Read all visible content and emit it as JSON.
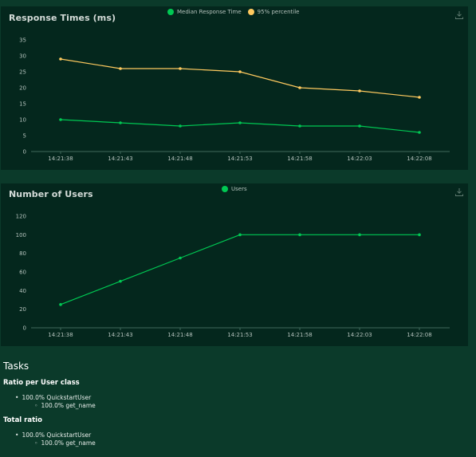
{
  "response_chart": {
    "title": "Response Times (ms)",
    "legend": [
      {
        "name": "Median Response Time",
        "color": "#00c853"
      },
      {
        "name": "95% percentile",
        "color": "#ffca5f"
      }
    ],
    "download_icon": "download-icon"
  },
  "users_chart": {
    "title": "Number of Users",
    "legend": [
      {
        "name": "Users",
        "color": "#00c853"
      }
    ],
    "download_icon": "download-icon"
  },
  "chart_data": [
    {
      "type": "line",
      "title": "Response Times (ms)",
      "x": [
        "14:21:38",
        "14:21:43",
        "14:21:48",
        "14:21:53",
        "14:21:58",
        "14:22:03",
        "14:22:08"
      ],
      "yticks": [
        0,
        5,
        10,
        15,
        20,
        25,
        30,
        35
      ],
      "ylim": [
        0,
        35
      ],
      "grid": false,
      "legend_position": "top",
      "series": [
        {
          "name": "Median Response Time",
          "color": "#00c853",
          "values": [
            10,
            9,
            8,
            9,
            8,
            8,
            6
          ]
        },
        {
          "name": "95% percentile",
          "color": "#ffca5f",
          "values": [
            29,
            26,
            26,
            25,
            20,
            19,
            17
          ]
        }
      ]
    },
    {
      "type": "line",
      "title": "Number of Users",
      "x": [
        "14:21:38",
        "14:21:43",
        "14:21:48",
        "14:21:53",
        "14:21:58",
        "14:22:03",
        "14:22:08"
      ],
      "yticks": [
        0,
        20,
        40,
        60,
        80,
        100,
        120
      ],
      "ylim": [
        0,
        120
      ],
      "grid": false,
      "legend_position": "top",
      "series": [
        {
          "name": "Users",
          "color": "#00c853",
          "values": [
            25,
            50,
            75,
            100,
            100,
            100,
            100
          ]
        }
      ]
    }
  ],
  "tasks": {
    "heading": "Tasks",
    "ratio_heading": "Ratio per User class",
    "ratio_items": [
      {
        "label": "100.0% QuickstartUser",
        "children": [
          "100.0% get_name"
        ]
      }
    ],
    "total_heading": "Total ratio",
    "total_items": [
      {
        "label": "100.0% QuickstartUser",
        "children": [
          "100.0% get_name"
        ]
      }
    ]
  }
}
